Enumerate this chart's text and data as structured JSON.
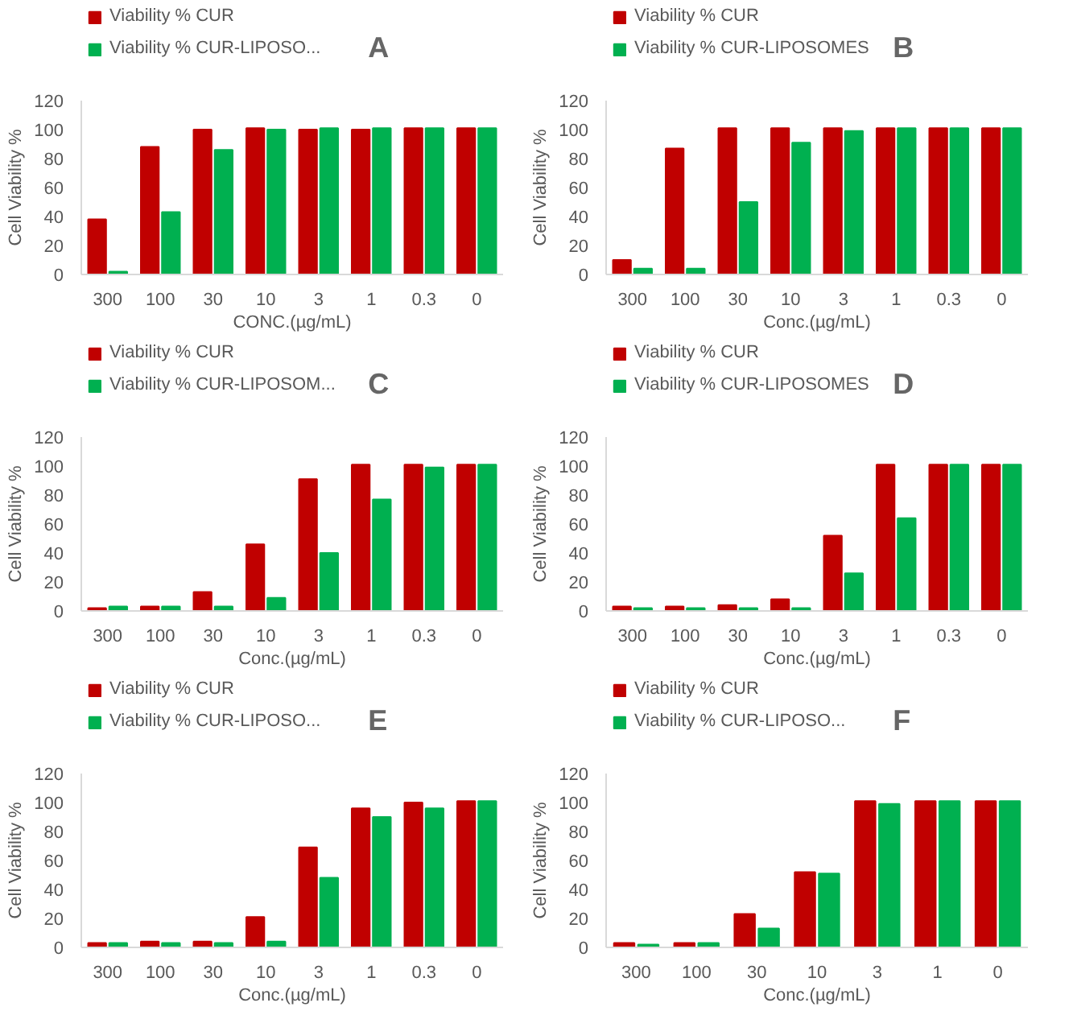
{
  "chart_data": [
    {
      "type": "bar",
      "title": "A",
      "xlabel": "CONC.(µg/mL)",
      "ylabel": "Cell Viability %",
      "categories": [
        "300",
        "100",
        "30",
        "10",
        "3",
        "1",
        "0.3",
        "0"
      ],
      "ylim": [
        0,
        120
      ],
      "yticks": [
        0,
        20,
        40,
        60,
        80,
        100,
        120
      ],
      "grid": false,
      "legend": "top left",
      "series": [
        {
          "name": "Viability % CUR",
          "color": "#c00000",
          "values": [
            38,
            88,
            100,
            101,
            100,
            100,
            101,
            101
          ]
        },
        {
          "name": "Viability % CUR-LIPOSO...",
          "color": "#00b050",
          "values": [
            2,
            43,
            86,
            100,
            101,
            101,
            101,
            101
          ]
        }
      ]
    },
    {
      "type": "bar",
      "title": "B",
      "xlabel": "Conc.(µg/mL)",
      "ylabel": "Cell Viability %",
      "categories": [
        "300",
        "100",
        "30",
        "10",
        "3",
        "1",
        "0.3",
        "0"
      ],
      "ylim": [
        0,
        120
      ],
      "yticks": [
        0,
        20,
        40,
        60,
        80,
        100,
        120
      ],
      "grid": false,
      "legend": "top left",
      "series": [
        {
          "name": "Viability % CUR",
          "color": "#c00000",
          "values": [
            10,
            87,
            101,
            101,
            101,
            101,
            101,
            101
          ]
        },
        {
          "name": "Viability % CUR-LIPOSOMES",
          "color": "#00b050",
          "values": [
            4,
            4,
            50,
            91,
            99,
            101,
            101,
            101
          ]
        }
      ]
    },
    {
      "type": "bar",
      "title": "C",
      "xlabel": "Conc.(µg/mL)",
      "ylabel": "Cell Viability %",
      "categories": [
        "300",
        "100",
        "30",
        "10",
        "3",
        "1",
        "0.3",
        "0"
      ],
      "ylim": [
        0,
        120
      ],
      "yticks": [
        0,
        20,
        40,
        60,
        80,
        100,
        120
      ],
      "grid": false,
      "legend": "top left",
      "series": [
        {
          "name": "Viability % CUR",
          "color": "#c00000",
          "values": [
            2,
            3,
            13,
            46,
            91,
            101,
            101,
            101
          ]
        },
        {
          "name": "Viability % CUR-LIPOSOM...",
          "color": "#00b050",
          "values": [
            3,
            3,
            3,
            9,
            40,
            77,
            99,
            101
          ]
        }
      ]
    },
    {
      "type": "bar",
      "title": "D",
      "xlabel": "Conc.(µg/mL)",
      "ylabel": "Cell Viability %",
      "categories": [
        "300",
        "100",
        "30",
        "10",
        "3",
        "1",
        "0.3",
        "0"
      ],
      "ylim": [
        0,
        120
      ],
      "yticks": [
        0,
        20,
        40,
        60,
        80,
        100,
        120
      ],
      "grid": false,
      "legend": "top left",
      "series": [
        {
          "name": "Viability % CUR",
          "color": "#c00000",
          "values": [
            3,
            3,
            4,
            8,
            52,
            101,
            101,
            101
          ]
        },
        {
          "name": "Viability % CUR-LIPOSOMES",
          "color": "#00b050",
          "values": [
            2,
            2,
            2,
            2,
            26,
            64,
            101,
            101
          ]
        }
      ]
    },
    {
      "type": "bar",
      "title": "E",
      "xlabel": "Conc.(µg/mL)",
      "ylabel": "Cell Viability %",
      "categories": [
        "300",
        "100",
        "30",
        "10",
        "3",
        "1",
        "0.3",
        "0"
      ],
      "ylim": [
        0,
        120
      ],
      "yticks": [
        0,
        20,
        40,
        60,
        80,
        100,
        120
      ],
      "grid": false,
      "legend": "top left",
      "series": [
        {
          "name": "Viability % CUR",
          "color": "#c00000",
          "values": [
            3,
            4,
            4,
            21,
            69,
            96,
            100,
            101
          ]
        },
        {
          "name": "Viability % CUR-LIPOSO...",
          "color": "#00b050",
          "values": [
            3,
            3,
            3,
            4,
            48,
            90,
            96,
            101
          ]
        }
      ]
    },
    {
      "type": "bar",
      "title": "F",
      "xlabel": "Conc.(µg/mL)",
      "ylabel": "Cell Viability %",
      "categories": [
        "300",
        "100",
        "30",
        "10",
        "3",
        "1",
        "0"
      ],
      "ylim": [
        0,
        120
      ],
      "yticks": [
        0,
        20,
        40,
        60,
        80,
        100,
        120
      ],
      "grid": false,
      "legend": "top left",
      "series": [
        {
          "name": "Viability % CUR",
          "color": "#c00000",
          "values": [
            3,
            3,
            23,
            52,
            101,
            101,
            101
          ]
        },
        {
          "name": "Viability % CUR-LIPOSO...",
          "color": "#00b050",
          "values": [
            2,
            3,
            13,
            51,
            99,
            101,
            101
          ]
        }
      ]
    }
  ]
}
